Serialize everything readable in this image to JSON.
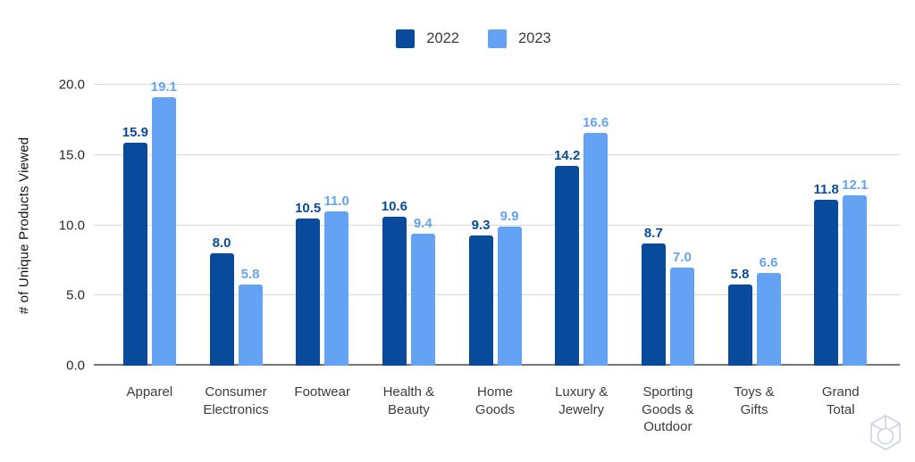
{
  "chart_data": {
    "type": "bar",
    "title": "",
    "ylabel": "# of Unique Products Viewed",
    "xlabel": "",
    "ylim": [
      0,
      20
    ],
    "yticks": [
      0,
      5,
      10,
      15,
      20
    ],
    "grid": true,
    "legend_position": "top",
    "categories": [
      "Apparel",
      "Consumer\nElectronics",
      "Footwear",
      "Health &\nBeauty",
      "Home\nGoods",
      "Luxury &\nJewelry",
      "Sporting\nGoods &\nOutdoor",
      "Toys &\nGifts",
      "Grand\nTotal"
    ],
    "series": [
      {
        "name": "2022",
        "color": "#084b9c",
        "values": [
          15.9,
          8.0,
          10.5,
          10.6,
          9.3,
          14.2,
          8.7,
          5.8,
          11.8
        ]
      },
      {
        "name": "2023",
        "color": "#64a3f3",
        "values": [
          19.1,
          5.8,
          11.0,
          9.4,
          9.9,
          16.6,
          7.0,
          6.6,
          12.1
        ]
      }
    ],
    "gridline_color": "#d9d9d9",
    "axis_line_color": "#757575"
  },
  "watermark": {
    "icon": "cube-icon",
    "color": "#ccd3e3"
  }
}
